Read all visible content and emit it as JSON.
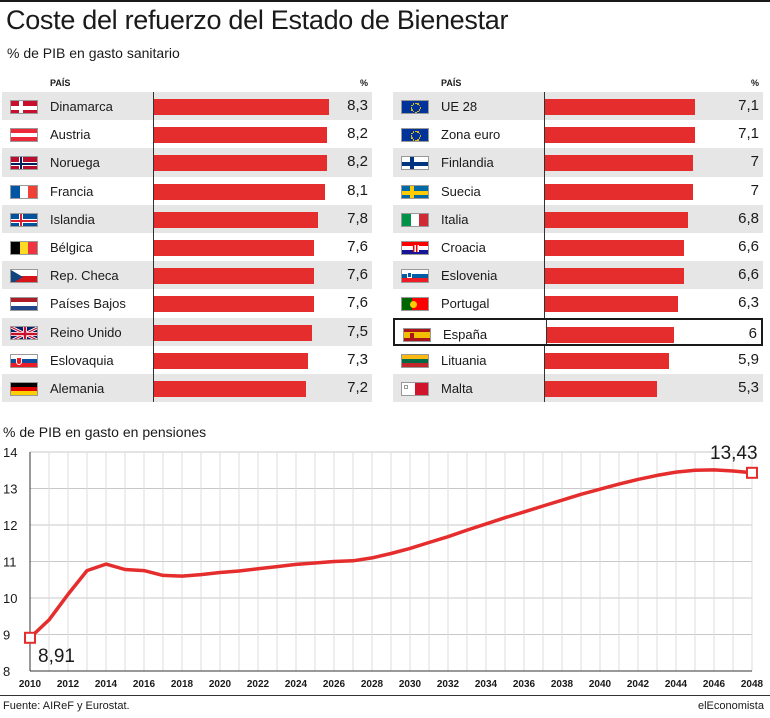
{
  "title": "Coste del refuerzo del Estado de Bienestar",
  "subtitle": "% de PIB en gasto sanitario",
  "col_country": "PAÍS",
  "col_pct": "%",
  "colors": {
    "bar": "#e52d2d",
    "alt_row": "#e6e6e6",
    "text": "#1a1a1a"
  },
  "chart_data": [
    {
      "type": "bar",
      "title": "% de PIB en gasto sanitario",
      "categories": [
        "Dinamarca",
        "Austria",
        "Noruega",
        "Francia",
        "Islandia",
        "Bélgica",
        "Rep. Checa",
        "Países Bajos",
        "Reino Unido",
        "Eslovaquia",
        "Alemania",
        "UE 28",
        "Zona euro",
        "Finlandia",
        "Suecia",
        "Italia",
        "Croacia",
        "Eslovenia",
        "Portugal",
        "España",
        "Lituania",
        "Malta"
      ],
      "value_labels": [
        "8,3",
        "8,2",
        "8,2",
        "8,1",
        "7,8",
        "7,6",
        "7,6",
        "7,6",
        "7,5",
        "7,3",
        "7,2",
        "7,1",
        "7,1",
        "7",
        "7",
        "6,8",
        "6,6",
        "6,6",
        "6,3",
        "6",
        "5,9",
        "5,3"
      ],
      "values": [
        8.3,
        8.2,
        8.2,
        8.1,
        7.8,
        7.6,
        7.6,
        7.6,
        7.5,
        7.3,
        7.2,
        7.1,
        7.1,
        7.0,
        7.0,
        6.8,
        6.6,
        6.6,
        6.3,
        6.0,
        5.9,
        5.3
      ],
      "flags": [
        "flag-denmark-icon",
        "flag-austria-icon",
        "flag-norway-icon",
        "flag-france-icon",
        "flag-iceland-icon",
        "flag-belgium-icon",
        "flag-czech-icon",
        "flag-netherlands-icon",
        "flag-uk-icon",
        "flag-slovakia-icon",
        "flag-germany-icon",
        "flag-eu-icon",
        "flag-eu-icon",
        "flag-finland-icon",
        "flag-sweden-icon",
        "flag-italy-icon",
        "flag-croatia-icon",
        "flag-slovenia-icon",
        "flag-portugal-icon",
        "flag-spain-icon",
        "flag-lithuania-icon",
        "flag-malta-icon"
      ],
      "highlight": "España",
      "orientation": "horizontal"
    },
    {
      "type": "line",
      "title": "% de PIB en gasto en pensiones",
      "x": [
        2010,
        2011,
        2012,
        2013,
        2014,
        2015,
        2016,
        2017,
        2018,
        2019,
        2020,
        2021,
        2022,
        2023,
        2024,
        2025,
        2026,
        2027,
        2028,
        2029,
        2030,
        2031,
        2032,
        2033,
        2034,
        2035,
        2036,
        2037,
        2038,
        2039,
        2040,
        2041,
        2042,
        2043,
        2044,
        2045,
        2046,
        2047,
        2048
      ],
      "y": [
        8.91,
        9.4,
        10.1,
        10.75,
        10.93,
        10.78,
        10.75,
        10.62,
        10.6,
        10.64,
        10.7,
        10.74,
        10.8,
        10.86,
        10.92,
        10.96,
        11.0,
        11.02,
        11.1,
        11.22,
        11.36,
        11.52,
        11.68,
        11.86,
        12.03,
        12.2,
        12.36,
        12.52,
        12.68,
        12.84,
        12.98,
        13.12,
        13.25,
        13.36,
        13.45,
        13.5,
        13.51,
        13.48,
        13.43
      ],
      "x_ticks": [
        "2010",
        "2012",
        "2014",
        "2016",
        "2018",
        "2020",
        "2022",
        "2024",
        "2026",
        "2028",
        "2030",
        "2032",
        "2034",
        "2036",
        "2038",
        "2040",
        "2042",
        "2044",
        "2046",
        "2048"
      ],
      "y_ticks": [
        "8",
        "9",
        "10",
        "11",
        "12",
        "13",
        "14"
      ],
      "ylim": [
        8,
        14
      ],
      "xlim": [
        2010,
        2048
      ],
      "grid": true,
      "start_label": "8,91",
      "end_label": "13,43",
      "color": "#e52d2d"
    }
  ],
  "source": "Fuente: AIReF y Eurostat.",
  "brand": "elEconomista"
}
